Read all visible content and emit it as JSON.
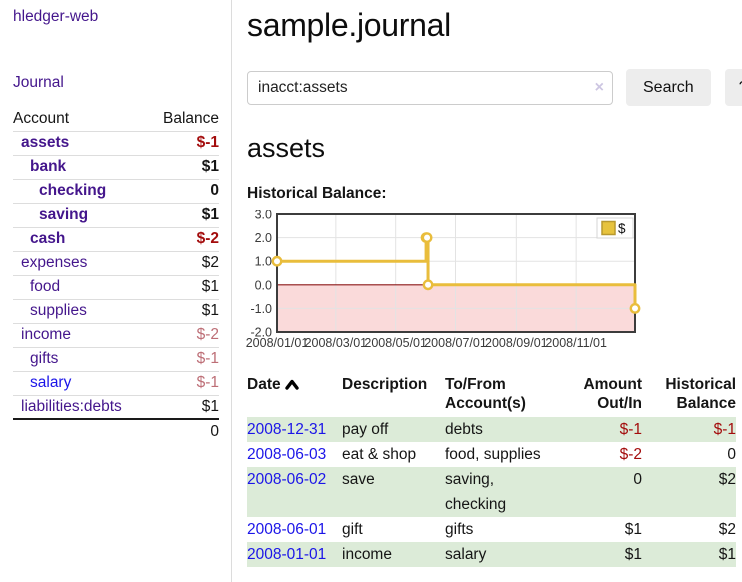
{
  "colors": {
    "purple": "#44168c",
    "blue": "#1b15e8",
    "black": "#151515",
    "dark_red": "#a30c0c",
    "faded_red": "#bd6e76",
    "row_green": "#dcebd8",
    "chart_gold": "#e9bd3c",
    "chart_pink": "#fadada",
    "chart_zero_line": "#8c1717",
    "chart_grid": "#e3e3e3",
    "chart_border": "#3c3c3c"
  },
  "app": {
    "brand": "hledger-web",
    "nav_journal": "Journal"
  },
  "sidebar": {
    "accounts_header": {
      "account": "Account",
      "balance": "Balance"
    },
    "accounts": [
      {
        "name": "assets",
        "balance": "$-1",
        "level": 0,
        "bold": true,
        "name_color": "purple",
        "balance_color": "dark_red"
      },
      {
        "name": "bank",
        "balance": "$1",
        "level": 1,
        "bold": true,
        "name_color": "purple",
        "balance_color": "black"
      },
      {
        "name": "checking",
        "balance": "0",
        "level": 2,
        "bold": true,
        "name_color": "purple",
        "balance_color": "black"
      },
      {
        "name": "saving",
        "balance": "$1",
        "level": 2,
        "bold": true,
        "name_color": "purple",
        "balance_color": "black"
      },
      {
        "name": "cash",
        "balance": "$-2",
        "level": 1,
        "bold": true,
        "name_color": "purple",
        "balance_color": "dark_red"
      },
      {
        "name": "expenses",
        "balance": "$2",
        "level": 0,
        "bold": false,
        "name_color": "purple",
        "balance_color": "black"
      },
      {
        "name": "food",
        "balance": "$1",
        "level": 1,
        "bold": false,
        "name_color": "purple",
        "balance_color": "black"
      },
      {
        "name": "supplies",
        "balance": "$1",
        "level": 1,
        "bold": false,
        "name_color": "purple",
        "balance_color": "black"
      },
      {
        "name": "income",
        "balance": "$-2",
        "level": 0,
        "bold": false,
        "name_color": "purple",
        "balance_color": "faded_red"
      },
      {
        "name": "gifts",
        "balance": "$-1",
        "level": 1,
        "bold": false,
        "name_color": "purple",
        "balance_color": "faded_red"
      },
      {
        "name": "salary",
        "balance": "$-1",
        "level": 1,
        "bold": false,
        "name_color": "blue",
        "balance_color": "faded_red"
      },
      {
        "name": "liabilities:debts",
        "balance": "$1",
        "level": 0,
        "bold": false,
        "name_color": "purple",
        "balance_color": "black"
      }
    ],
    "total": "0"
  },
  "header": {
    "title": "sample.journal"
  },
  "search": {
    "value": "inacct:assets",
    "clear_icon": "×",
    "button": "Search",
    "help_button": "?"
  },
  "account_page": {
    "heading": "assets",
    "chart_label": "Historical Balance:"
  },
  "chart_data": {
    "type": "line",
    "step": true,
    "title": "Historical Balance:",
    "legend": {
      "label": "$",
      "position": "top-right"
    },
    "grid": true,
    "ylim": [
      -2.0,
      3.0
    ],
    "yticks": [
      3.0,
      2.0,
      1.0,
      0.0,
      -1.0,
      -2.0
    ],
    "xtick_labels": [
      "2008/01/01",
      "2008/03/01",
      "2008/05/01",
      "2008/07/01",
      "2008/09/01",
      "2008/11/01"
    ],
    "series": [
      {
        "name": "$",
        "points": [
          {
            "date": "2008-01-01",
            "value": 1
          },
          {
            "date": "2008-06-01",
            "value": 2
          },
          {
            "date": "2008-06-02",
            "value": 2
          },
          {
            "date": "2008-06-03",
            "value": 0
          },
          {
            "date": "2008-12-31",
            "value": -1
          }
        ]
      }
    ],
    "negative_region_filled": true
  },
  "register": {
    "columns": [
      {
        "lines": [
          "Date"
        ],
        "align": "left",
        "sorted": "asc"
      },
      {
        "lines": [
          "Description"
        ],
        "align": "left"
      },
      {
        "lines": [
          "To/From",
          "Account(s)"
        ],
        "align": "left"
      },
      {
        "lines": [
          "Amount",
          "Out/In"
        ],
        "align": "right"
      },
      {
        "lines": [
          "Historical",
          "Balance"
        ],
        "align": "right"
      }
    ],
    "rows": [
      {
        "date": "2008-12-31",
        "description": "pay off",
        "accounts": [
          "debts"
        ],
        "amount": "$-1",
        "amount_neg": true,
        "balance": "$-1",
        "balance_neg": true,
        "green": true
      },
      {
        "date": "2008-06-03",
        "description": "eat & shop",
        "accounts": [
          "food, supplies"
        ],
        "amount": "$-2",
        "amount_neg": true,
        "balance": "0",
        "balance_neg": false,
        "green": false
      },
      {
        "date": "2008-06-02",
        "description": "save",
        "accounts": [
          "saving,",
          "checking"
        ],
        "amount": "0",
        "amount_neg": false,
        "balance": "$2",
        "balance_neg": false,
        "green": true
      },
      {
        "date": "2008-06-01",
        "description": "gift",
        "accounts": [
          "gifts"
        ],
        "amount": "$1",
        "amount_neg": false,
        "balance": "$2",
        "balance_neg": false,
        "green": false
      },
      {
        "date": "2008-01-01",
        "description": "income",
        "accounts": [
          "salary"
        ],
        "amount": "$1",
        "amount_neg": false,
        "balance": "$1",
        "balance_neg": false,
        "green": true
      }
    ]
  }
}
